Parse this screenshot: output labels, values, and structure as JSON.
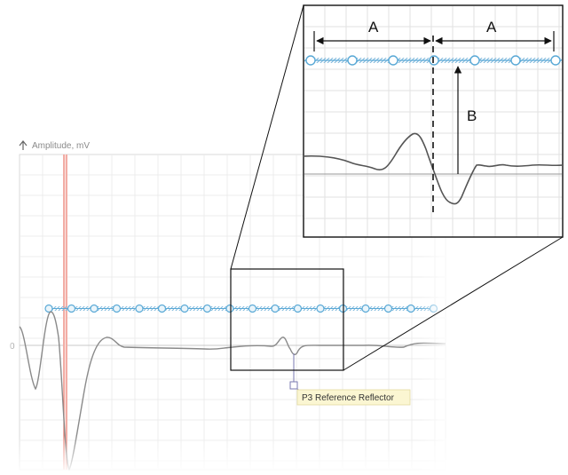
{
  "plot": {
    "axis_label": "Amplitude, mV",
    "zero_label": "0",
    "marker_label": "P3 Reference Reflector",
    "colors": {
      "grid": "#ececec",
      "waveform": "#8a8a8a",
      "waveform_dark": "#555555",
      "cursor_line": "#e8776b",
      "marker_line": "#5aa9d6",
      "marker_fill": "#eaf5fb",
      "reflector_marker": "#7a7ab0",
      "tooltip_bg": "#fbf6d2"
    }
  },
  "zoom": {
    "label_a_left": "A",
    "label_a_right": "A",
    "label_b": "B"
  }
}
